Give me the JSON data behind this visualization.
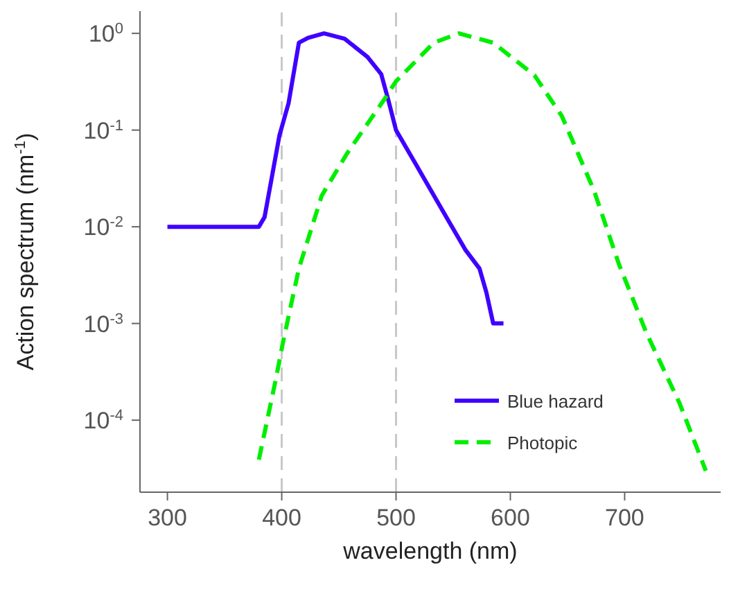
{
  "chart_data": {
    "type": "line",
    "xlabel": "wavelength (nm)",
    "ylabel": "Action spectrum (nm$^{-1}$)",
    "log": "y",
    "xlim": [
      276,
      784
    ],
    "xticks": [
      300,
      400,
      500,
      600,
      700
    ],
    "ylim": [
      1.8e-05,
      1.7
    ],
    "yticks": [
      {
        "value": 0.0001,
        "label": "10$^{-4}$"
      },
      {
        "value": 0.001,
        "label": "10$^{-3}$"
      },
      {
        "value": 0.01,
        "label": "10$^{-2}$"
      },
      {
        "value": 0.1,
        "label": "10$^{-1}$"
      },
      {
        "value": 1,
        "label": "10$^{0}$"
      }
    ],
    "legend": "bottom right",
    "ref_lines": [
      {
        "axis": "x",
        "value": 400,
        "color": "#c8c8c8",
        "line_style": "dashed"
      },
      {
        "axis": "x",
        "value": 500,
        "color": "#c8c8c8",
        "line_style": "dashed"
      }
    ],
    "series": [
      {
        "name": "Blue hazard",
        "color": "#3f00ff",
        "line_style": "solid",
        "x": [
          300,
          380,
          385,
          398,
          406,
          415,
          423,
          437,
          455,
          475,
          487,
          493,
          500,
          517,
          545,
          561,
          573,
          579,
          585,
          594
        ],
        "values": [
          0.01,
          0.01,
          0.0126,
          0.088,
          0.19,
          0.8,
          0.9,
          1.0,
          0.88,
          0.57,
          0.38,
          0.21,
          0.1,
          0.045,
          0.012,
          0.0057,
          0.0037,
          0.0021,
          0.001,
          0.001
        ]
      },
      {
        "name": "Photopic",
        "color": "#00ee00",
        "line_style": "dashed",
        "x": [
          380,
          395,
          401,
          415,
          435,
          457,
          490,
          500,
          533,
          555,
          585,
          621,
          645,
          673,
          695,
          719,
          748,
          771
        ],
        "values": [
          3.9e-05,
          0.00027,
          0.00063,
          0.0037,
          0.021,
          0.057,
          0.21,
          0.32,
          0.8,
          1.0,
          0.8,
          0.37,
          0.14,
          0.024,
          0.0041,
          0.0008,
          0.00015,
          3e-05
        ]
      }
    ]
  }
}
